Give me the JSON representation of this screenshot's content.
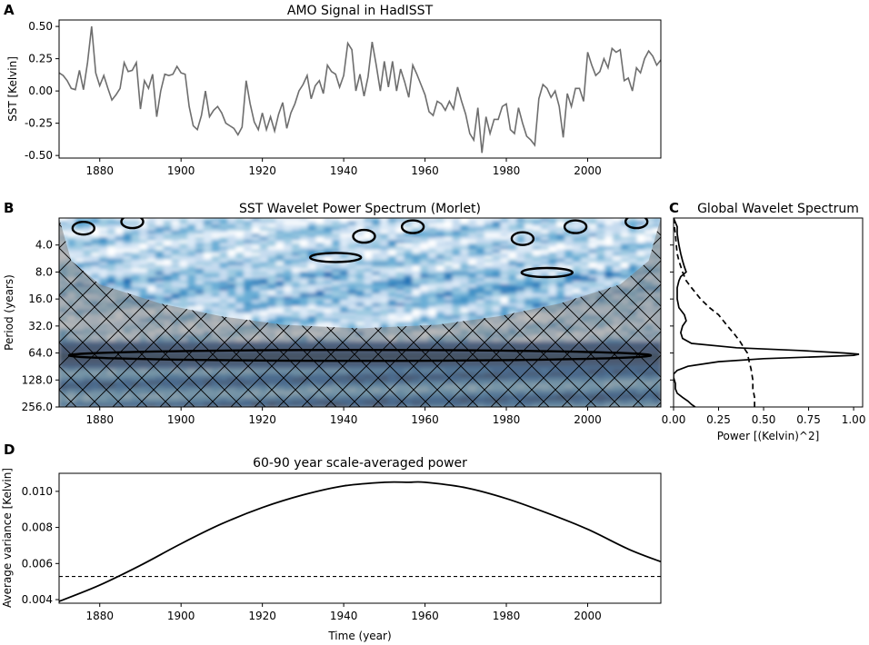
{
  "chart_data": [
    {
      "panel_letter": "A",
      "type": "line",
      "title": "AMO Signal in HadISST",
      "xlabel": "",
      "ylabel": "SST [Kelvin]",
      "xlim": [
        1870,
        2018
      ],
      "ylim": [
        -0.52,
        0.55
      ],
      "xticks": [
        1880,
        1900,
        1920,
        1940,
        1960,
        1980,
        2000
      ],
      "yticks": [
        -0.5,
        -0.25,
        0.0,
        0.25,
        0.5
      ],
      "ytick_labels": [
        "-0.50",
        "-0.25",
        "0.00",
        "0.25",
        "0.50"
      ],
      "grid": false,
      "line_color": "#6e6e6e",
      "x": [
        1870,
        1871,
        1872,
        1873,
        1874,
        1875,
        1876,
        1877,
        1878,
        1879,
        1880,
        1881,
        1882,
        1883,
        1884,
        1885,
        1886,
        1887,
        1888,
        1889,
        1890,
        1891,
        1892,
        1893,
        1894,
        1895,
        1896,
        1897,
        1898,
        1899,
        1900,
        1901,
        1902,
        1903,
        1904,
        1905,
        1906,
        1907,
        1908,
        1909,
        1910,
        1911,
        1912,
        1913,
        1914,
        1915,
        1916,
        1917,
        1918,
        1919,
        1920,
        1921,
        1922,
        1923,
        1924,
        1925,
        1926,
        1927,
        1928,
        1929,
        1930,
        1931,
        1932,
        1933,
        1934,
        1935,
        1936,
        1937,
        1938,
        1939,
        1940,
        1941,
        1942,
        1943,
        1944,
        1945,
        1946,
        1947,
        1948,
        1949,
        1950,
        1951,
        1952,
        1953,
        1954,
        1955,
        1956,
        1957,
        1958,
        1959,
        1960,
        1961,
        1962,
        1963,
        1964,
        1965,
        1966,
        1967,
        1968,
        1969,
        1970,
        1971,
        1972,
        1973,
        1974,
        1975,
        1976,
        1977,
        1978,
        1979,
        1980,
        1981,
        1982,
        1983,
        1984,
        1985,
        1986,
        1987,
        1988,
        1989,
        1990,
        1991,
        1992,
        1993,
        1994,
        1995,
        1996,
        1997,
        1998,
        1999,
        2000,
        2001,
        2002,
        2003,
        2004,
        2005,
        2006,
        2007,
        2008,
        2009,
        2010,
        2011,
        2012,
        2013,
        2014,
        2015,
        2016,
        2017,
        2018
      ],
      "y": [
        0.14,
        0.12,
        0.08,
        0.02,
        0.01,
        0.16,
        0.01,
        0.22,
        0.5,
        0.14,
        0.04,
        0.12,
        0.02,
        -0.07,
        -0.03,
        0.02,
        0.22,
        0.15,
        0.16,
        0.22,
        -0.14,
        0.08,
        0.02,
        0.13,
        -0.2,
        0.0,
        0.13,
        0.12,
        0.13,
        0.19,
        0.14,
        0.13,
        -0.12,
        -0.27,
        -0.3,
        -0.19,
        0.0,
        -0.2,
        -0.15,
        -0.12,
        -0.17,
        -0.25,
        -0.27,
        -0.29,
        -0.34,
        -0.28,
        0.08,
        -0.1,
        -0.24,
        -0.3,
        -0.17,
        -0.3,
        -0.2,
        -0.31,
        -0.18,
        -0.09,
        -0.29,
        -0.17,
        -0.1,
        0.0,
        0.05,
        0.12,
        -0.06,
        0.04,
        0.08,
        -0.02,
        0.2,
        0.15,
        0.13,
        0.03,
        0.12,
        0.37,
        0.32,
        0.0,
        0.13,
        -0.04,
        0.11,
        0.38,
        0.2,
        0.0,
        0.23,
        0.03,
        0.23,
        0.0,
        0.17,
        0.07,
        -0.05,
        0.2,
        0.13,
        0.05,
        -0.03,
        -0.16,
        -0.19,
        -0.08,
        -0.1,
        -0.15,
        -0.08,
        -0.14,
        0.03,
        -0.08,
        -0.18,
        -0.33,
        -0.38,
        -0.13,
        -0.48,
        -0.2,
        -0.33,
        -0.22,
        -0.22,
        -0.12,
        -0.1,
        -0.3,
        -0.33,
        -0.13,
        -0.25,
        -0.35,
        -0.38,
        -0.42,
        -0.06,
        0.05,
        0.02,
        -0.05,
        0.0,
        -0.12,
        -0.36,
        -0.02,
        -0.12,
        0.02,
        0.02,
        -0.08,
        0.3,
        0.2,
        0.12,
        0.15,
        0.25,
        0.18,
        0.33,
        0.3,
        0.32,
        0.08,
        0.1,
        0.0,
        0.18,
        0.14,
        0.25,
        0.31,
        0.27,
        0.2,
        0.24
      ]
    },
    {
      "panel_letter": "B",
      "type": "heatmap",
      "title": "SST Wavelet Power Spectrum (Morlet)",
      "xlabel": "",
      "ylabel": "Period (years)",
      "xlim": [
        1870,
        2018
      ],
      "period_range": [
        2,
        256
      ],
      "y_scale": "log2-inverted",
      "xticks": [
        1880,
        1900,
        1920,
        1940,
        1960,
        1980,
        2000
      ],
      "yticks": [
        4,
        8,
        16,
        32,
        64,
        128,
        256
      ],
      "ytick_labels": [
        "4.0",
        "8.0",
        "16.0",
        "32.0",
        "64.0",
        "128.0",
        "256.0"
      ],
      "colormap": [
        "#ffffff",
        "#dbe9f6",
        "#c6dbef",
        "#9ecae1",
        "#6baed6",
        "#4292c6",
        "#2171b5",
        "#08519c",
        "#08306b",
        "#061c3f"
      ],
      "cone_of_influence_color": "#808080",
      "dominant_band_period": 68,
      "significance_contours": [
        {
          "center_year": 1876,
          "period": 2.6
        },
        {
          "center_year": 1888,
          "period": 2.2
        },
        {
          "center_year": 1938,
          "period": 5.5
        },
        {
          "center_year": 1945,
          "period": 3.2
        },
        {
          "center_year": 1957,
          "period": 2.5
        },
        {
          "center_year": 1984,
          "period": 3.4
        },
        {
          "center_year": 1990,
          "period": 8.1
        },
        {
          "center_year": 1997,
          "period": 2.5
        },
        {
          "center_year": 2012,
          "period": 2.2
        },
        {
          "center_year": 1944,
          "period": 68
        }
      ]
    },
    {
      "panel_letter": "C",
      "type": "line",
      "title": "Global Wavelet Spectrum",
      "xlabel": "Power [(Kelvin)^2]",
      "ylabel": "",
      "xlim": [
        0,
        1.05
      ],
      "period_range": [
        2,
        256
      ],
      "xticks": [
        0.0,
        0.25,
        0.5,
        0.75,
        1.0
      ],
      "xtick_labels": [
        "0.00",
        "0.25",
        "0.50",
        "0.75",
        "1.00"
      ],
      "series": [
        {
          "style": "solid",
          "period": [
            2,
            2.5,
            3,
            4,
            5,
            6,
            7,
            8,
            9,
            10,
            12,
            16,
            20,
            24,
            28,
            32,
            38,
            44,
            50,
            56,
            60,
            64,
            66,
            68,
            70,
            74,
            80,
            90,
            100,
            110,
            120,
            140,
            160,
            180,
            200,
            220,
            240,
            256
          ],
          "power": [
            0.0,
            0.02,
            0.02,
            0.03,
            0.04,
            0.05,
            0.06,
            0.07,
            0.04,
            0.03,
            0.02,
            0.02,
            0.03,
            0.06,
            0.07,
            0.05,
            0.04,
            0.05,
            0.1,
            0.35,
            0.7,
            0.95,
            1.03,
            1.0,
            0.85,
            0.5,
            0.25,
            0.08,
            0.02,
            0.0,
            0.0,
            0.01,
            0.01,
            0.02,
            0.05,
            0.08,
            0.1,
            0.12
          ]
        },
        {
          "style": "dashed",
          "period": [
            2,
            2.5,
            3,
            4,
            5,
            6,
            8,
            10,
            12,
            16,
            20,
            24,
            32,
            40,
            48,
            56,
            64,
            80,
            96,
            128,
            160,
            200,
            256
          ],
          "power": [
            0.0,
            0.005,
            0.01,
            0.015,
            0.02,
            0.03,
            0.05,
            0.07,
            0.1,
            0.15,
            0.2,
            0.25,
            0.3,
            0.34,
            0.37,
            0.39,
            0.41,
            0.42,
            0.43,
            0.44,
            0.44,
            0.45,
            0.45
          ]
        }
      ]
    },
    {
      "panel_letter": "D",
      "type": "line",
      "title": "60-90 year scale-averaged power",
      "xlabel": "Time (year)",
      "ylabel": "Average variance [Kelvin]",
      "xlim": [
        1870,
        2018
      ],
      "ylim": [
        0.0038,
        0.011
      ],
      "xticks": [
        1880,
        1900,
        1920,
        1940,
        1960,
        1980,
        2000
      ],
      "yticks": [
        0.004,
        0.006,
        0.008,
        0.01
      ],
      "ytick_labels": [
        "0.004",
        "0.006",
        "0.008",
        "0.010"
      ],
      "series": [
        {
          "style": "solid",
          "peak_year": 1956,
          "peak_value": 0.0105,
          "x": [
            1870,
            1880,
            1890,
            1900,
            1910,
            1920,
            1930,
            1940,
            1950,
            1956,
            1960,
            1970,
            1980,
            1990,
            2000,
            2010,
            2018
          ],
          "y": [
            0.0039,
            0.0048,
            0.0059,
            0.0071,
            0.0082,
            0.0091,
            0.0098,
            0.0103,
            0.0105,
            0.0105,
            0.0105,
            0.0102,
            0.0096,
            0.0088,
            0.0079,
            0.0068,
            0.0061
          ]
        },
        {
          "style": "dashed",
          "x": [
            1870,
            2018
          ],
          "y": [
            0.00528,
            0.00528
          ]
        }
      ]
    }
  ]
}
